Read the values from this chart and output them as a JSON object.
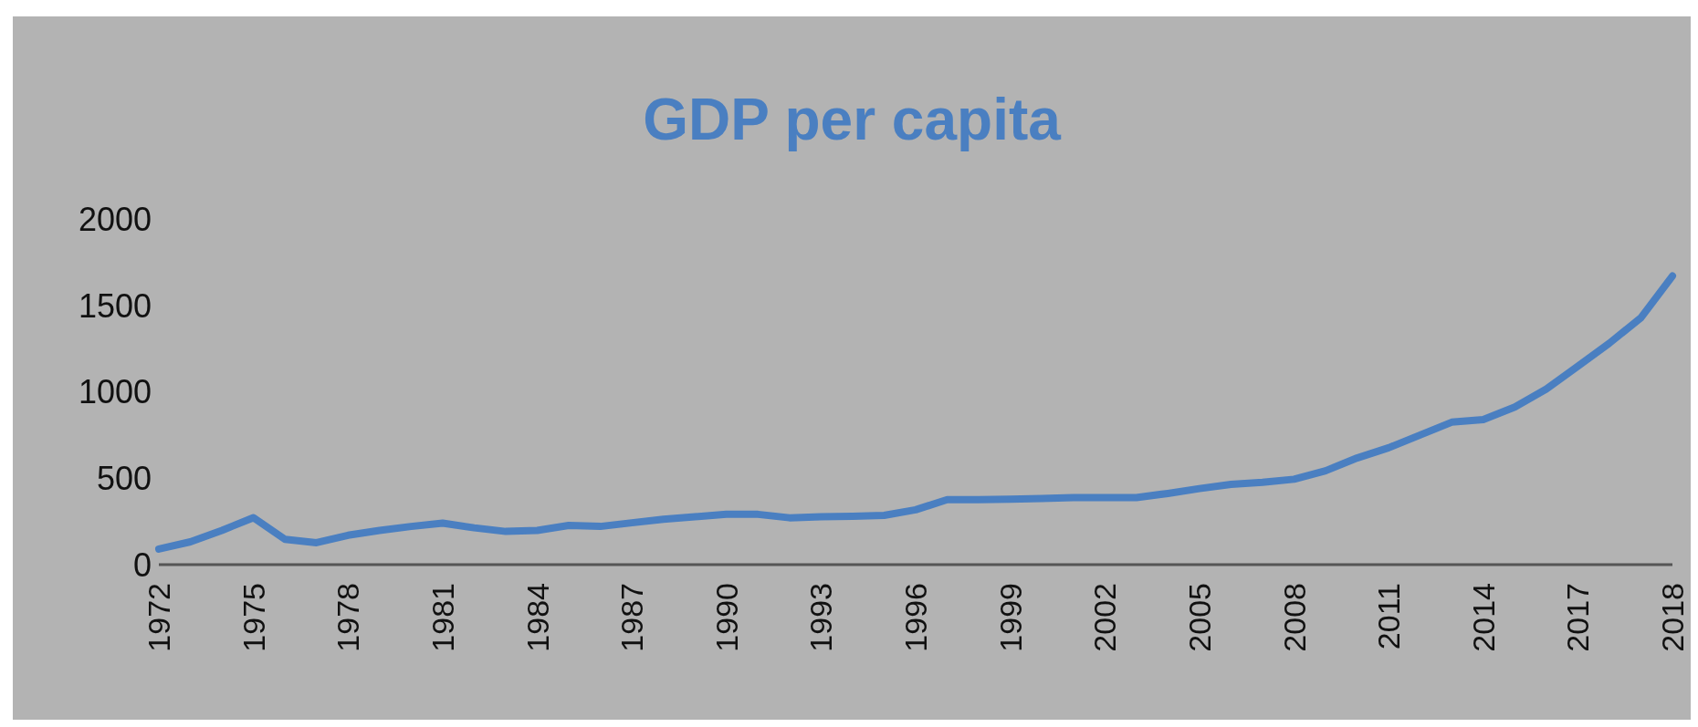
{
  "chart_data": {
    "type": "line",
    "title": "GDP per capita",
    "categories": [
      "1972",
      null,
      null,
      "1975",
      null,
      null,
      "1978",
      null,
      null,
      "1981",
      null,
      null,
      "1984",
      null,
      null,
      "1987",
      null,
      null,
      "1990",
      null,
      null,
      "1993",
      null,
      null,
      "1996",
      null,
      null,
      "1999",
      null,
      null,
      "2002",
      null,
      null,
      "2005",
      null,
      null,
      "2008",
      null,
      null,
      "2011",
      null,
      null,
      "2014",
      null,
      null,
      "2017",
      null,
      null,
      "2018"
    ],
    "series": [
      {
        "color": "#4a7fc1",
        "values": [
          90,
          132,
          198,
          272,
          146,
          127,
          170,
          198,
          221,
          240,
          213,
          192,
          198,
          227,
          221,
          242,
          262,
          277,
          291,
          291,
          271,
          277,
          280,
          285,
          317,
          376,
          376,
          378,
          382,
          388,
          388,
          388,
          412,
          440,
          464,
          476,
          494,
          543,
          617,
          676,
          750,
          824,
          839,
          912,
          1016,
          1148,
          1281,
          1428,
          1670
        ]
      }
    ],
    "ylim": [
      0,
      2000
    ],
    "yticks": [
      0,
      500,
      1000,
      1500,
      2000
    ],
    "grid": false,
    "legend": false,
    "marker": "none",
    "line_style": "solid"
  }
}
